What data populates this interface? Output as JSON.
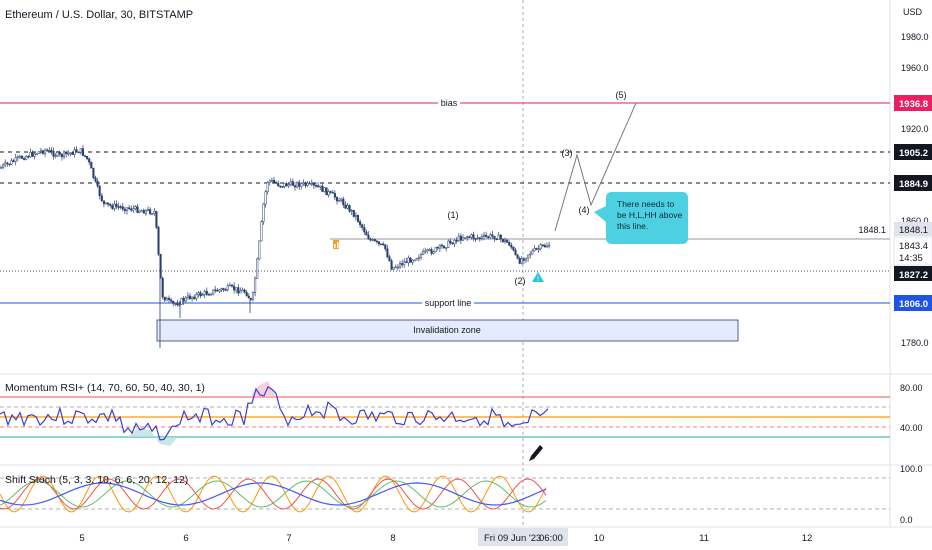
{
  "header": {
    "title": "Ethereum / U.S. Dollar, 30, BITSTAMP"
  },
  "axis": {
    "currency": "USD",
    "price_ticks": [
      "1980.0",
      "1960.0",
      "1920.0",
      "1860.0",
      "1780.0"
    ],
    "rsi_ticks": [
      "80.00",
      "40.00"
    ],
    "stoch_ticks": [
      "100.0",
      "0.0"
    ],
    "time_ticks": [
      "5",
      "6",
      "7",
      "8",
      "10",
      "11",
      "12"
    ],
    "crosshair_time": "Fri 09 Jun '23",
    "crosshair_hour": "06:00"
  },
  "price_tags": {
    "bias": "1936.8",
    "resistance_upper": "1905.2",
    "resistance_lower": "1884.9",
    "level": "1848.1",
    "last": "1843.4",
    "countdown": "14:35",
    "level_2": "1827.2",
    "support": "1806.0"
  },
  "drawings": {
    "bias_label": "bias",
    "support_label": "support line",
    "level_label": "1848.1",
    "invalidation_label": "Invalidation zone",
    "note": "There needs to be H,L,HH above this line.",
    "waves": [
      "(1)",
      "(2)",
      "(3)",
      "(4)",
      "(5)"
    ]
  },
  "indicators": {
    "rsi_label": "Momentum RSI+ (14, 70, 60, 50, 40, 30, 1)",
    "stoch_label": "Shift Stoch (5, 3, 3, 10, 6, 6, 20, 12, 12)"
  },
  "colors": {
    "bias": "#e91e63",
    "support": "#1e53e5",
    "candle": "#2a3f72",
    "note_bg": "#4dd0e1",
    "rsi_upper": "#ef5350",
    "rsi_mid": "#ff9800",
    "rsi_lower": "#26a69a",
    "rsi_line": "#3d3dd6"
  }
}
